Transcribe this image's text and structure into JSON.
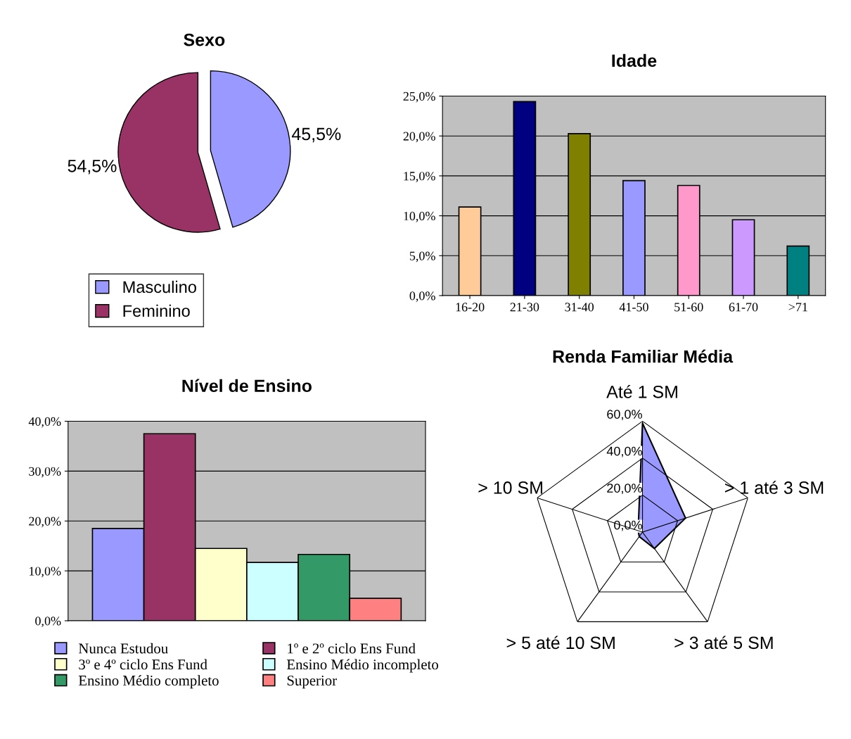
{
  "chart_data": [
    {
      "type": "pie",
      "title": "Sexo",
      "categories": [
        "Masculino",
        "Feminino"
      ],
      "values": [
        45.5,
        54.5
      ],
      "colors": [
        "#9999ff",
        "#993366"
      ],
      "value_labels": [
        "45,5%",
        "54,5%"
      ],
      "legend": "bottom left"
    },
    {
      "type": "bar",
      "title": "Idade",
      "categories": [
        "16-20",
        "21-30",
        "31-40",
        "41-50",
        "51-60",
        "61-70",
        ">71"
      ],
      "values": [
        11.1,
        24.3,
        20.3,
        14.4,
        13.8,
        9.5,
        6.2
      ],
      "colors": [
        "#ffcc99",
        "#000080",
        "#808000",
        "#9999ff",
        "#ff99cc",
        "#cc99ff",
        "#008080"
      ],
      "ylim": [
        0,
        25
      ],
      "yticks": [
        {
          "value": 0,
          "label": "0,0%"
        },
        {
          "value": 5,
          "label": "5,0%"
        },
        {
          "value": 10,
          "label": "10,0%"
        },
        {
          "value": 15,
          "label": "15,0%"
        },
        {
          "value": 20,
          "label": "20,0%"
        },
        {
          "value": 25,
          "label": "25,0%"
        }
      ],
      "grid": "y"
    },
    {
      "type": "bar",
      "title": "Nível de Ensino",
      "categories": [
        null
      ],
      "series": [
        {
          "name": "Nunca Estudou",
          "color": "#9999ff",
          "values": [
            18.5
          ]
        },
        {
          "name": "1º e 2º ciclo Ens Fund",
          "color": "#993366",
          "values": [
            37.5
          ]
        },
        {
          "name": "3º e 4º ciclo Ens Fund",
          "color": "#ffffcc",
          "values": [
            14.5
          ]
        },
        {
          "name": "Ensino Médio incompleto",
          "color": "#ccffff",
          "values": [
            11.7
          ]
        },
        {
          "name": "Ensino Médio completo",
          "color": "#339966",
          "values": [
            13.3
          ]
        },
        {
          "name": "Superior",
          "color": "#ff8080",
          "values": [
            4.5
          ]
        }
      ],
      "ylim": [
        0,
        40
      ],
      "yticks": [
        {
          "value": 0,
          "label": "0,0%"
        },
        {
          "value": 10,
          "label": "10,0%"
        },
        {
          "value": 20,
          "label": "20,0%"
        },
        {
          "value": 30,
          "label": "30,0%"
        },
        {
          "value": 40,
          "label": "40,0%"
        }
      ],
      "grid": "y",
      "legend": "bottom",
      "tick_labels": "y"
    },
    {
      "type": "radar",
      "title": "Renda Familiar Média",
      "categories": [
        "Até 1 SM",
        "> 1 até 3 SM",
        "> 3 até 5 SM",
        "> 5 até 10 SM",
        "> 10 SM"
      ],
      "series": [
        {
          "color": "#9999ff",
          "values": [
            59,
            24.5,
            11,
            3,
            2.5
          ]
        }
      ],
      "ylim": [
        0,
        60
      ],
      "yticks": [
        {
          "value": 0,
          "label": "0,0%"
        },
        {
          "value": 20,
          "label": "20,0%"
        },
        {
          "value": 40,
          "label": "40,0%"
        },
        {
          "value": 60,
          "label": "60,0%"
        }
      ],
      "grid": true
    }
  ]
}
